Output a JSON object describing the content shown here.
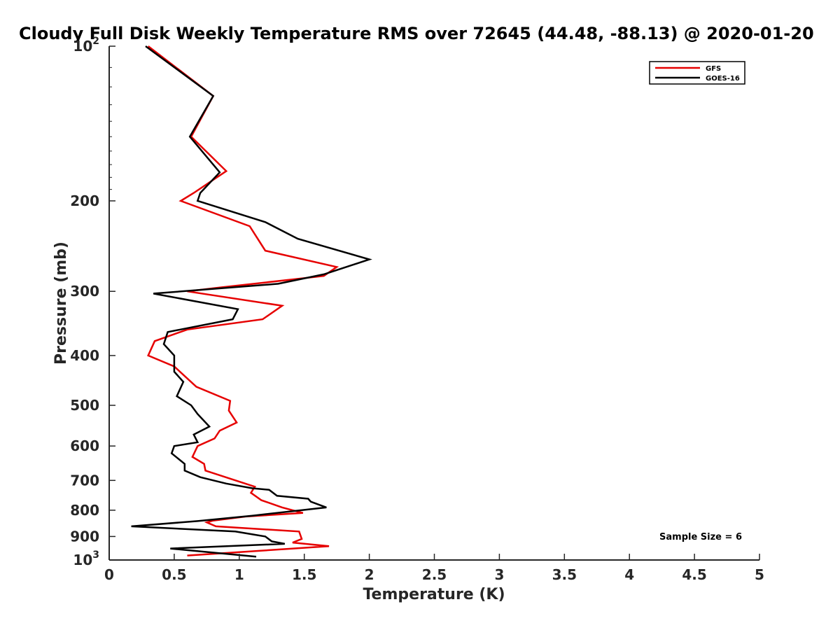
{
  "chart_data": {
    "type": "line",
    "title": "Cloudy Full Disk Weekly Temperature RMS over 72645 (44.48, -88.13) @ 2020-01-20",
    "xlabel": "Temperature (K)",
    "ylabel": "Pressure (mb)",
    "xlim": [
      0,
      5
    ],
    "ylim": [
      100,
      1000
    ],
    "y_scale": "log",
    "y_reversed": true,
    "x_ticks": [
      "0",
      "0.5",
      "1",
      "1.5",
      "2",
      "2.5",
      "3",
      "3.5",
      "4",
      "4.5",
      "5"
    ],
    "y_ticks": [
      {
        "value": 100,
        "label": "10",
        "sup": "2"
      },
      {
        "value": 200,
        "label": "200",
        "sup": ""
      },
      {
        "value": 300,
        "label": "300",
        "sup": ""
      },
      {
        "value": 400,
        "label": "400",
        "sup": ""
      },
      {
        "value": 500,
        "label": "500",
        "sup": ""
      },
      {
        "value": 600,
        "label": "600",
        "sup": ""
      },
      {
        "value": 700,
        "label": "700",
        "sup": ""
      },
      {
        "value": 800,
        "label": "800",
        "sup": ""
      },
      {
        "value": 900,
        "label": "900",
        "sup": ""
      },
      {
        "value": 1000,
        "label": "10",
        "sup": "3"
      }
    ],
    "grid": false,
    "legend_position": "top-right",
    "annotation": "Sample Size = 6",
    "series": [
      {
        "name": "GFS",
        "color": "#e60000",
        "points": [
          [
            0.3,
            100
          ],
          [
            0.8,
            125
          ],
          [
            0.63,
            150
          ],
          [
            0.9,
            175
          ],
          [
            0.65,
            193
          ],
          [
            0.55,
            200
          ],
          [
            1.08,
            224
          ],
          [
            1.2,
            250
          ],
          [
            1.75,
            269
          ],
          [
            1.65,
            280
          ],
          [
            0.85,
            295
          ],
          [
            0.6,
            300
          ],
          [
            1.33,
            320
          ],
          [
            1.18,
            340
          ],
          [
            0.6,
            356
          ],
          [
            0.35,
            375
          ],
          [
            0.3,
            400
          ],
          [
            0.5,
            420
          ],
          [
            0.67,
            460
          ],
          [
            0.93,
            490
          ],
          [
            0.92,
            512
          ],
          [
            0.98,
            540
          ],
          [
            0.85,
            560
          ],
          [
            0.81,
            580
          ],
          [
            0.68,
            600
          ],
          [
            0.64,
            630
          ],
          [
            0.73,
            650
          ],
          [
            0.74,
            670
          ],
          [
            1.12,
            720
          ],
          [
            1.09,
            740
          ],
          [
            1.17,
            765
          ],
          [
            1.33,
            790
          ],
          [
            1.49,
            810
          ],
          [
            1.05,
            823
          ],
          [
            0.8,
            838
          ],
          [
            0.75,
            845
          ],
          [
            0.82,
            860
          ],
          [
            1.46,
            880
          ],
          [
            1.48,
            910
          ],
          [
            1.41,
            925
          ],
          [
            1.69,
            940
          ],
          [
            0.6,
            980
          ]
        ]
      },
      {
        "name": "GOES-16",
        "color": "#000000",
        "points": [
          [
            0.28,
            100
          ],
          [
            0.8,
            125
          ],
          [
            0.62,
            150
          ],
          [
            0.85,
            176
          ],
          [
            0.7,
            193
          ],
          [
            0.68,
            200
          ],
          [
            1.2,
            220
          ],
          [
            1.45,
            237
          ],
          [
            2.0,
            260
          ],
          [
            1.65,
            278
          ],
          [
            1.3,
            290
          ],
          [
            0.34,
            303
          ],
          [
            0.99,
            325
          ],
          [
            0.95,
            340
          ],
          [
            0.45,
            360
          ],
          [
            0.42,
            380
          ],
          [
            0.5,
            400
          ],
          [
            0.5,
            430
          ],
          [
            0.57,
            450
          ],
          [
            0.52,
            480
          ],
          [
            0.63,
            500
          ],
          [
            0.68,
            520
          ],
          [
            0.77,
            550
          ],
          [
            0.65,
            570
          ],
          [
            0.68,
            590
          ],
          [
            0.5,
            600
          ],
          [
            0.48,
            620
          ],
          [
            0.58,
            650
          ],
          [
            0.58,
            670
          ],
          [
            0.7,
            690
          ],
          [
            0.9,
            710
          ],
          [
            1.1,
            725
          ],
          [
            1.23,
            730
          ],
          [
            1.29,
            750
          ],
          [
            1.53,
            760
          ],
          [
            1.55,
            770
          ],
          [
            1.67,
            790
          ],
          [
            1.1,
            820
          ],
          [
            0.68,
            840
          ],
          [
            0.17,
            860
          ],
          [
            0.97,
            880
          ],
          [
            1.2,
            900
          ],
          [
            1.25,
            920
          ],
          [
            1.35,
            930
          ],
          [
            0.47,
            950
          ],
          [
            1.13,
            985
          ]
        ]
      }
    ]
  }
}
